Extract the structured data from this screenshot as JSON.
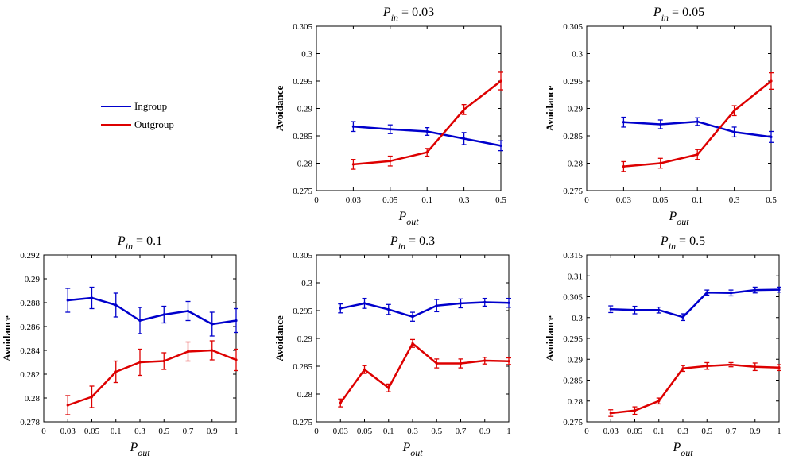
{
  "figure": {
    "legend": [
      {
        "label": "Ingroup",
        "color": "#0000cc"
      },
      {
        "label": "Outgroup",
        "color": "#dd0000"
      }
    ]
  },
  "chart_data": [
    {
      "type": "line",
      "title": {
        "main": "P",
        "sub": "in",
        "rest": " = 0.03"
      },
      "xlabel": {
        "main": "P",
        "sub": "out"
      },
      "ylabel": "Avoidance",
      "x_tick_labels": [
        "0",
        "0.03",
        "0.05",
        "0.1",
        "0.3",
        "0.5"
      ],
      "categories": [
        "0.03",
        "0.05",
        "0.1",
        "0.3",
        "0.5"
      ],
      "ylim": [
        0.275,
        0.305
      ],
      "y_ticks": [
        0.275,
        0.28,
        0.285,
        0.29,
        0.295,
        0.3,
        0.305
      ],
      "y_tick_labels": [
        "0.275",
        "0.28",
        "0.285",
        "0.29",
        "0.295",
        "0.3",
        "0.305"
      ],
      "series": [
        {
          "name": "Ingroup",
          "color": "#0000cc",
          "values": [
            0.2867,
            0.2862,
            0.2858,
            0.2845,
            0.2832
          ],
          "errors": [
            0.0009,
            0.0008,
            0.0007,
            0.0011,
            0.0009
          ]
        },
        {
          "name": "Outgroup",
          "color": "#dd0000",
          "values": [
            0.2798,
            0.2804,
            0.282,
            0.2898,
            0.295
          ],
          "errors": [
            0.0009,
            0.0009,
            0.0007,
            0.0009,
            0.0016
          ]
        }
      ]
    },
    {
      "type": "line",
      "title": {
        "main": "P",
        "sub": "in",
        "rest": " = 0.05"
      },
      "xlabel": {
        "main": "P",
        "sub": "out"
      },
      "ylabel": "Avoidance",
      "x_tick_labels": [
        "0",
        "0.03",
        "0.05",
        "0.1",
        "0.3",
        "0.5"
      ],
      "categories": [
        "0.03",
        "0.05",
        "0.1",
        "0.3",
        "0.5"
      ],
      "ylim": [
        0.275,
        0.305
      ],
      "y_ticks": [
        0.275,
        0.28,
        0.285,
        0.29,
        0.295,
        0.3,
        0.305
      ],
      "y_tick_labels": [
        "0.275",
        "0.28",
        "0.285",
        "0.29",
        "0.295",
        "0.3",
        "0.305"
      ],
      "series": [
        {
          "name": "Ingroup",
          "color": "#0000cc",
          "values": [
            0.2875,
            0.2871,
            0.2876,
            0.2857,
            0.2848
          ],
          "errors": [
            0.0009,
            0.0008,
            0.0007,
            0.0009,
            0.001
          ]
        },
        {
          "name": "Outgroup",
          "color": "#dd0000",
          "values": [
            0.2794,
            0.28,
            0.2816,
            0.2896,
            0.295
          ],
          "errors": [
            0.0009,
            0.0009,
            0.0009,
            0.0009,
            0.0015
          ]
        }
      ]
    },
    {
      "type": "line",
      "title": {
        "main": "P",
        "sub": "in",
        "rest": " = 0.1"
      },
      "xlabel": {
        "main": "P",
        "sub": "out"
      },
      "ylabel": "Avoidance",
      "x_tick_labels": [
        "0",
        "0.03",
        "0.05",
        "0.1",
        "0.3",
        "0.5",
        "0.7",
        "0.9",
        "1"
      ],
      "categories": [
        "0.03",
        "0.05",
        "0.1",
        "0.3",
        "0.5",
        "0.7",
        "0.9",
        "1"
      ],
      "ylim": [
        0.278,
        0.292
      ],
      "y_ticks": [
        0.278,
        0.28,
        0.282,
        0.284,
        0.286,
        0.288,
        0.29,
        0.292
      ],
      "y_tick_labels": [
        "0.278",
        "0.28",
        "0.282",
        "0.284",
        "0.286",
        "0.288",
        "0.29",
        "0.292"
      ],
      "series": [
        {
          "name": "Ingroup",
          "color": "#0000cc",
          "values": [
            0.2882,
            0.2884,
            0.2878,
            0.2865,
            0.287,
            0.2873,
            0.2862,
            0.2865
          ],
          "errors": [
            0.001,
            0.0009,
            0.001,
            0.0011,
            0.0007,
            0.0008,
            0.001,
            0.001
          ]
        },
        {
          "name": "Outgroup",
          "color": "#dd0000",
          "values": [
            0.2794,
            0.2801,
            0.2822,
            0.283,
            0.2831,
            0.2839,
            0.284,
            0.2832
          ],
          "errors": [
            0.0008,
            0.0009,
            0.0009,
            0.0011,
            0.0007,
            0.0008,
            0.0008,
            0.0009
          ]
        }
      ]
    },
    {
      "type": "line",
      "title": {
        "main": "P",
        "sub": "in",
        "rest": " = 0.3"
      },
      "xlabel": {
        "main": "P",
        "sub": "out"
      },
      "ylabel": "Avoidance",
      "x_tick_labels": [
        "0",
        "0.03",
        "0.05",
        "0.1",
        "0.3",
        "0.5",
        "0.7",
        "0.9",
        "1"
      ],
      "categories": [
        "0.03",
        "0.05",
        "0.1",
        "0.3",
        "0.5",
        "0.7",
        "0.9",
        "1"
      ],
      "ylim": [
        0.275,
        0.305
      ],
      "y_ticks": [
        0.275,
        0.28,
        0.285,
        0.29,
        0.295,
        0.3,
        0.305
      ],
      "y_tick_labels": [
        "0.275",
        "0.28",
        "0.285",
        "0.29",
        "0.295",
        "0.3",
        "0.305"
      ],
      "series": [
        {
          "name": "Ingroup",
          "color": "#0000cc",
          "values": [
            0.2954,
            0.2963,
            0.2952,
            0.2939,
            0.2959,
            0.2963,
            0.2965,
            0.2964
          ],
          "errors": [
            0.0008,
            0.0009,
            0.0009,
            0.0008,
            0.0011,
            0.0008,
            0.0007,
            0.0008
          ]
        },
        {
          "name": "Outgroup",
          "color": "#dd0000",
          "values": [
            0.2784,
            0.2844,
            0.2811,
            0.2891,
            0.2855,
            0.2855,
            0.286,
            0.2859
          ],
          "errors": [
            0.0007,
            0.0007,
            0.0007,
            0.0007,
            0.0008,
            0.0008,
            0.0006,
            0.0006
          ]
        }
      ]
    },
    {
      "type": "line",
      "title": {
        "main": "P",
        "sub": "in",
        "rest": " = 0.5"
      },
      "xlabel": {
        "main": "P",
        "sub": "out"
      },
      "ylabel": "Avoidance",
      "x_tick_labels": [
        "0",
        "0.03",
        "0.05",
        "0.1",
        "0.3",
        "0.5",
        "0.7",
        "0.9",
        "1"
      ],
      "categories": [
        "0.03",
        "0.05",
        "0.1",
        "0.3",
        "0.5",
        "0.7",
        "0.9",
        "1"
      ],
      "ylim": [
        0.275,
        0.315
      ],
      "y_ticks": [
        0.275,
        0.28,
        0.285,
        0.29,
        0.295,
        0.3,
        0.305,
        0.31,
        0.315
      ],
      "y_tick_labels": [
        "0.275",
        "0.28",
        "0.285",
        "0.29",
        "0.295",
        "0.3",
        "0.305",
        "0.31",
        "0.315"
      ],
      "series": [
        {
          "name": "Ingroup",
          "color": "#0000cc",
          "values": [
            0.302,
            0.3018,
            0.3018,
            0.3001,
            0.306,
            0.3059,
            0.3066,
            0.3067
          ],
          "errors": [
            0.0008,
            0.0009,
            0.0007,
            0.0008,
            0.0006,
            0.0007,
            0.0007,
            0.0006
          ]
        },
        {
          "name": "Outgroup",
          "color": "#dd0000",
          "values": [
            0.2771,
            0.2777,
            0.28,
            0.2878,
            0.2884,
            0.2887,
            0.2882,
            0.288
          ],
          "errors": [
            0.0008,
            0.0009,
            0.0007,
            0.0007,
            0.0008,
            0.0005,
            0.0009,
            0.0007
          ]
        }
      ]
    }
  ]
}
